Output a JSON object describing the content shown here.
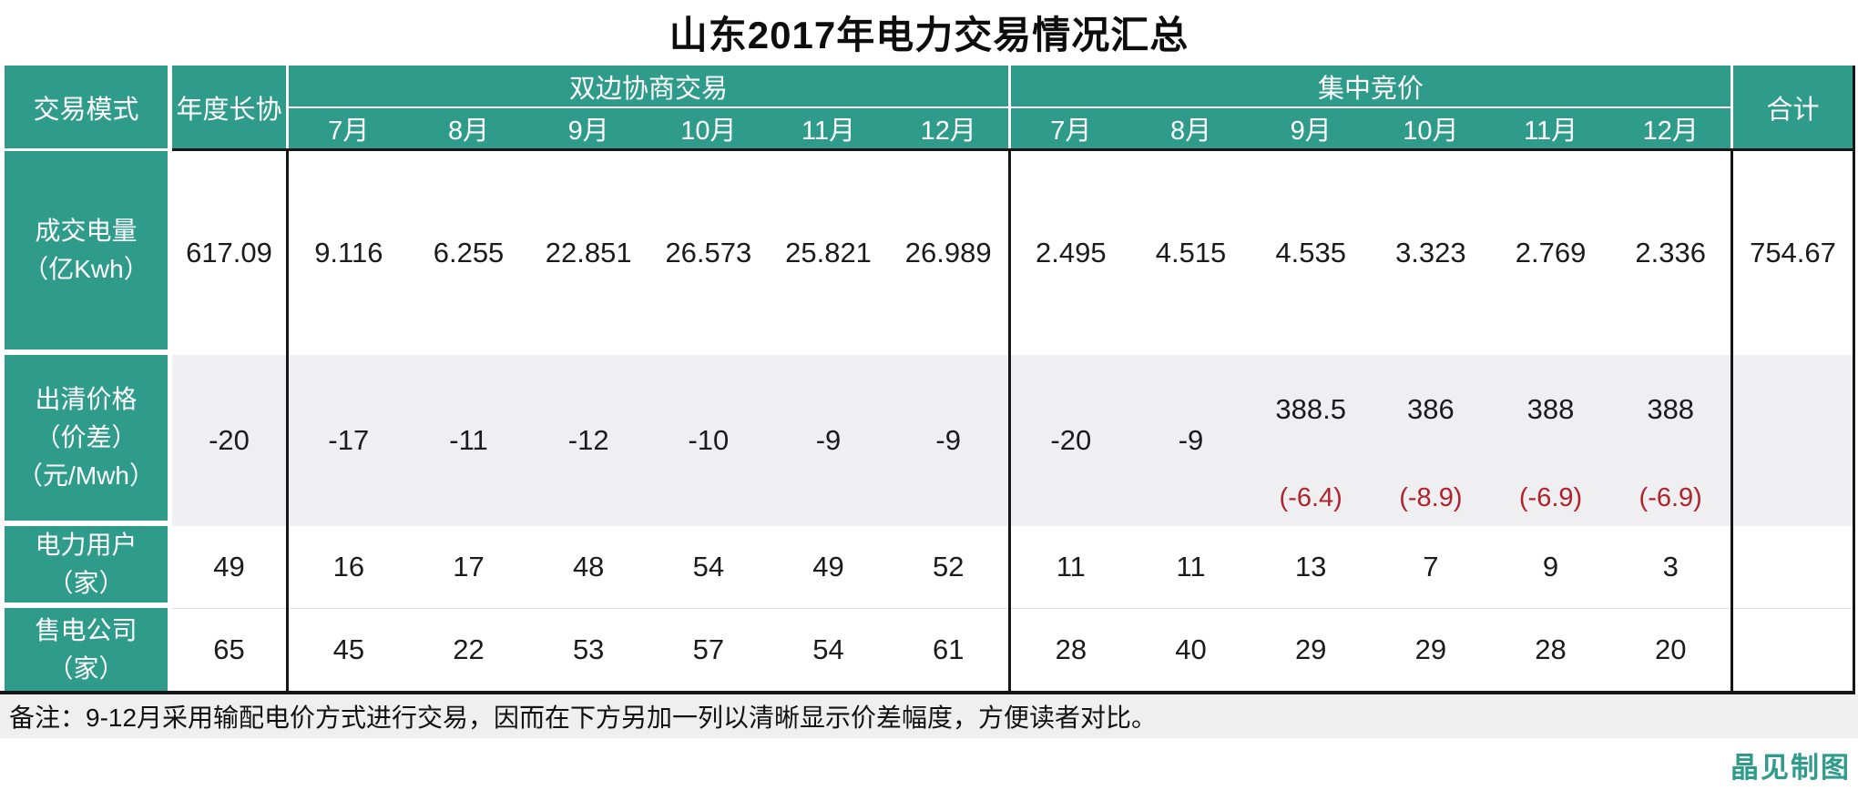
{
  "title": "山东2017年电力交易情况汇总",
  "header": {
    "trade_mode": "交易模式",
    "annual_contract": "年度长协",
    "bilateral": "双边协商交易",
    "centralized": "集中竞价",
    "total": "合计",
    "months": [
      "7月",
      "8月",
      "9月",
      "10月",
      "11月",
      "12月"
    ]
  },
  "rows": {
    "volume": {
      "label": "成交电量\n（亿Kwh）",
      "annual": "617.09",
      "bilateral": [
        "9.116",
        "6.255",
        "22.851",
        "26.573",
        "25.821",
        "26.989"
      ],
      "centralized": [
        "2.495",
        "4.515",
        "4.535",
        "3.323",
        "2.769",
        "2.336"
      ],
      "total": "754.67"
    },
    "price": {
      "label": "出清价格\n（价差）\n（元/Mwh）",
      "annual": "-20",
      "bilateral": [
        "-17",
        "-11",
        "-12",
        "-10",
        "-9",
        "-9"
      ],
      "centralized": [
        {
          "main": "-20"
        },
        {
          "main": "-9"
        },
        {
          "main": "388.5",
          "diff": "(-6.4)"
        },
        {
          "main": "386",
          "diff": "(-8.9)"
        },
        {
          "main": "388",
          "diff": "(-6.9)"
        },
        {
          "main": "388",
          "diff": "(-6.9)"
        }
      ],
      "total": ""
    },
    "users": {
      "label": "电力用户\n（家）",
      "annual": "49",
      "bilateral": [
        "16",
        "17",
        "48",
        "54",
        "49",
        "52"
      ],
      "centralized": [
        "11",
        "11",
        "13",
        "7",
        "9",
        "3"
      ],
      "total": ""
    },
    "sellers": {
      "label": "售电公司\n（家）",
      "annual": "65",
      "bilateral": [
        "45",
        "22",
        "53",
        "57",
        "54",
        "61"
      ],
      "centralized": [
        "28",
        "40",
        "29",
        "29",
        "28",
        "20"
      ],
      "total": ""
    }
  },
  "note": "备注：9-12月采用输配电价方式进行交易，因而在下方另加一列以清晰显示价差幅度，方便读者对比。",
  "credit": "晶见制图",
  "colors": {
    "teal": "#2f9c8b",
    "gray_row": "#efeef0",
    "note_bg": "#efefef",
    "diff_red": "#b0232c",
    "border_black": "#161616"
  },
  "chart_data": {
    "type": "table",
    "title": "山东2017年电力交易情况汇总",
    "columns": [
      "年度长协",
      "双边协商交易 7月",
      "双边协商交易 8月",
      "双边协商交易 9月",
      "双边协商交易 10月",
      "双边协商交易 11月",
      "双边协商交易 12月",
      "集中竞价 7月",
      "集中竞价 8月",
      "集中竞价 9月",
      "集中竞价 10月",
      "集中竞价 11月",
      "集中竞价 12月",
      "合计"
    ],
    "rows": [
      {
        "metric": "成交电量（亿Kwh）",
        "values": [
          617.09,
          9.116,
          6.255,
          22.851,
          26.573,
          25.821,
          26.989,
          2.495,
          4.515,
          4.535,
          3.323,
          2.769,
          2.336,
          754.67
        ]
      },
      {
        "metric": "出清价格（价差）（元/Mwh）",
        "values": [
          -20,
          -17,
          -11,
          -12,
          -10,
          -9,
          -9,
          -20,
          -9,
          "388.5 (-6.4)",
          "386 (-8.9)",
          "388 (-6.9)",
          "388 (-6.9)",
          null
        ]
      },
      {
        "metric": "电力用户（家）",
        "values": [
          49,
          16,
          17,
          48,
          54,
          49,
          52,
          11,
          11,
          13,
          7,
          9,
          3,
          null
        ]
      },
      {
        "metric": "售电公司（家）",
        "values": [
          65,
          45,
          22,
          53,
          57,
          54,
          61,
          28,
          40,
          29,
          29,
          28,
          20,
          null
        ]
      }
    ],
    "note": "9-12月采用输配电价方式进行交易，红色括号值为价差幅度"
  }
}
